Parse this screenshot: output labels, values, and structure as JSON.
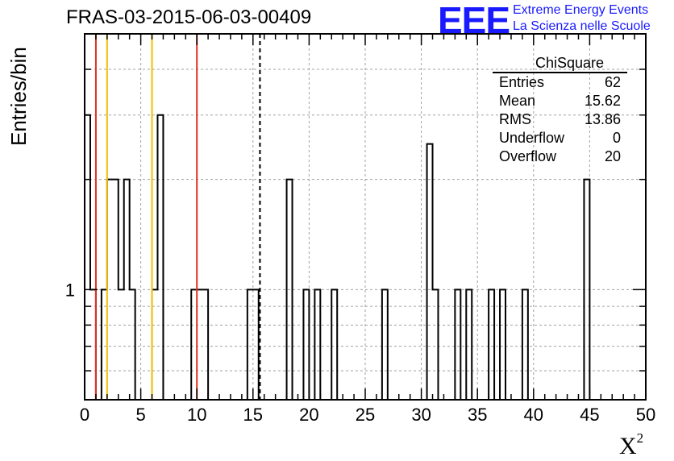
{
  "title": "FRAS-03-2015-06-03-00409",
  "logo": {
    "text": "EEE",
    "line1": "Extreme Energy Events",
    "line2": "La Scienza nelle Scuole",
    "color": "#1a1aff"
  },
  "stats": {
    "name": "ChiSquare",
    "rows": [
      {
        "label": "Entries",
        "value": "62"
      },
      {
        "label": "Mean",
        "value": "15.62"
      },
      {
        "label": "RMS",
        "value": "13.86"
      },
      {
        "label": "Underflow",
        "value": "0"
      },
      {
        "label": "Overflow",
        "value": "20"
      }
    ]
  },
  "chart_data": {
    "type": "bar",
    "histogram": true,
    "xlabel": "X",
    "xlabel_sup": "2",
    "ylabel": "Entries/bin",
    "xlim": [
      0,
      50
    ],
    "ylim": [
      0.5,
      5
    ],
    "y_scale": "log",
    "bin_width": 0.5,
    "grid": true,
    "x_ticks": [
      0,
      5,
      10,
      15,
      20,
      25,
      30,
      35,
      40,
      45,
      50
    ],
    "y_tick_label": "1",
    "bins": [
      {
        "x0": 0.0,
        "count": 3
      },
      {
        "x0": 0.5,
        "count": 1
      },
      {
        "x0": 1.5,
        "count": 1
      },
      {
        "x0": 2.0,
        "count": 2
      },
      {
        "x0": 2.5,
        "count": 2
      },
      {
        "x0": 3.0,
        "count": 1
      },
      {
        "x0": 3.5,
        "count": 2
      },
      {
        "x0": 4.0,
        "count": 1
      },
      {
        "x0": 6.0,
        "count": 1
      },
      {
        "x0": 6.5,
        "count": 3
      },
      {
        "x0": 9.5,
        "count": 1
      },
      {
        "x0": 10.0,
        "count": 1
      },
      {
        "x0": 10.5,
        "count": 1
      },
      {
        "x0": 14.5,
        "count": 1
      },
      {
        "x0": 15.0,
        "count": 1
      },
      {
        "x0": 18.0,
        "count": 2
      },
      {
        "x0": 19.5,
        "count": 1
      },
      {
        "x0": 20.5,
        "count": 1
      },
      {
        "x0": 22.0,
        "count": 1
      },
      {
        "x0": 26.5,
        "count": 1
      },
      {
        "x0": 30.5,
        "count": 2.5
      },
      {
        "x0": 31.0,
        "count": 1
      },
      {
        "x0": 33.0,
        "count": 1
      },
      {
        "x0": 34.0,
        "count": 1
      },
      {
        "x0": 36.0,
        "count": 1
      },
      {
        "x0": 37.0,
        "count": 1
      },
      {
        "x0": 39.0,
        "count": 1
      },
      {
        "x0": 44.5,
        "count": 2
      }
    ],
    "vlines": [
      {
        "x": 1.0,
        "color": "#e03020",
        "style": "solid"
      },
      {
        "x": 10.0,
        "color": "#e03020",
        "style": "solid"
      },
      {
        "x": 2.0,
        "color": "#f0c000",
        "style": "solid"
      },
      {
        "x": 6.0,
        "color": "#f0c000",
        "style": "solid"
      },
      {
        "x": 15.62,
        "color": "#000000",
        "style": "dashed"
      }
    ]
  }
}
